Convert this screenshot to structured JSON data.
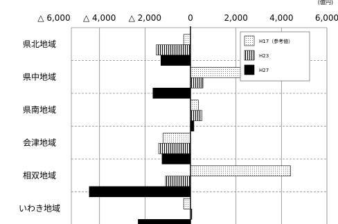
{
  "chart_data": {
    "type": "bar",
    "orientation": "horizontal",
    "unit_label": "(億円)",
    "xlim": [
      -6000,
      6000
    ],
    "x_ticks": [
      {
        "value": -6000,
        "label": "△ 6,000"
      },
      {
        "value": -4000,
        "label": "△ 4,000"
      },
      {
        "value": -2000,
        "label": "△ 2,000"
      },
      {
        "value": 0,
        "label": "0"
      },
      {
        "value": 2000,
        "label": "2,000"
      },
      {
        "value": 4000,
        "label": "4,000"
      },
      {
        "value": 6000,
        "label": "6,000"
      }
    ],
    "grid": true,
    "legend_position": "top-right",
    "categories": [
      "県北地域",
      "県中地域",
      "県南地域",
      "会津地域",
      "相双地域",
      "いわき地域"
    ],
    "series": [
      {
        "name": "H17（参考値）",
        "pattern": "dotted",
        "values": [
          -300,
          2200,
          350,
          -1200,
          4400,
          -300
        ]
      },
      {
        "name": "H23",
        "pattern": "vstripe",
        "values": [
          -1500,
          550,
          500,
          -1400,
          -1100,
          60
        ]
      },
      {
        "name": "H27",
        "pattern": "solid",
        "values": [
          -1300,
          -1650,
          150,
          -1250,
          -4450,
          -2300
        ]
      }
    ],
    "colors": {
      "axis": "#000000",
      "grid": "#888888",
      "bar_dark": "#000000"
    }
  }
}
